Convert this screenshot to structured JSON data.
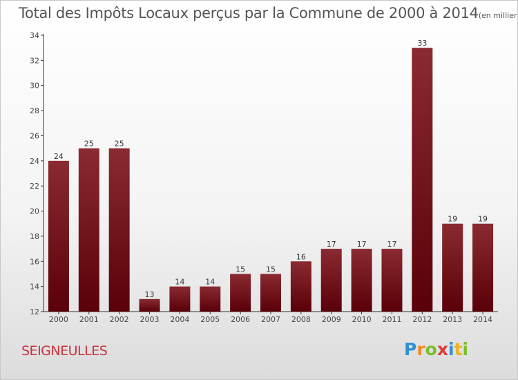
{
  "chart_data": {
    "type": "bar",
    "title": "Total des Impôts Locaux perçus par la Commune de 2000 à 2014",
    "subtitle": "(en milliers d'€)",
    "categories": [
      "2000",
      "2001",
      "2002",
      "2003",
      "2004",
      "2005",
      "2006",
      "2007",
      "2008",
      "2009",
      "2010",
      "2011",
      "2012",
      "2013",
      "2014"
    ],
    "values": [
      24,
      25,
      25,
      13,
      14,
      14,
      15,
      15,
      16,
      17,
      17,
      17,
      33,
      19,
      19
    ],
    "xlabel": "",
    "ylabel": "",
    "ylim": [
      12,
      34
    ],
    "yticks": [
      12,
      14,
      16,
      18,
      20,
      22,
      24,
      26,
      28,
      30,
      32,
      34
    ],
    "grid": false,
    "bar_color": "#6e0f17"
  },
  "footer": {
    "commune": "SEIGNEULLES",
    "commune_color": "#c8323c",
    "brand_letters": [
      "P",
      "r",
      "o",
      "x",
      "i",
      "t",
      "i"
    ],
    "brand_colors": [
      "#2f8fd6",
      "#f08a1e",
      "#7bbf2a",
      "#e03a3a",
      "#2f8fd6",
      "#f0b41e",
      "#7bbf2a"
    ]
  }
}
